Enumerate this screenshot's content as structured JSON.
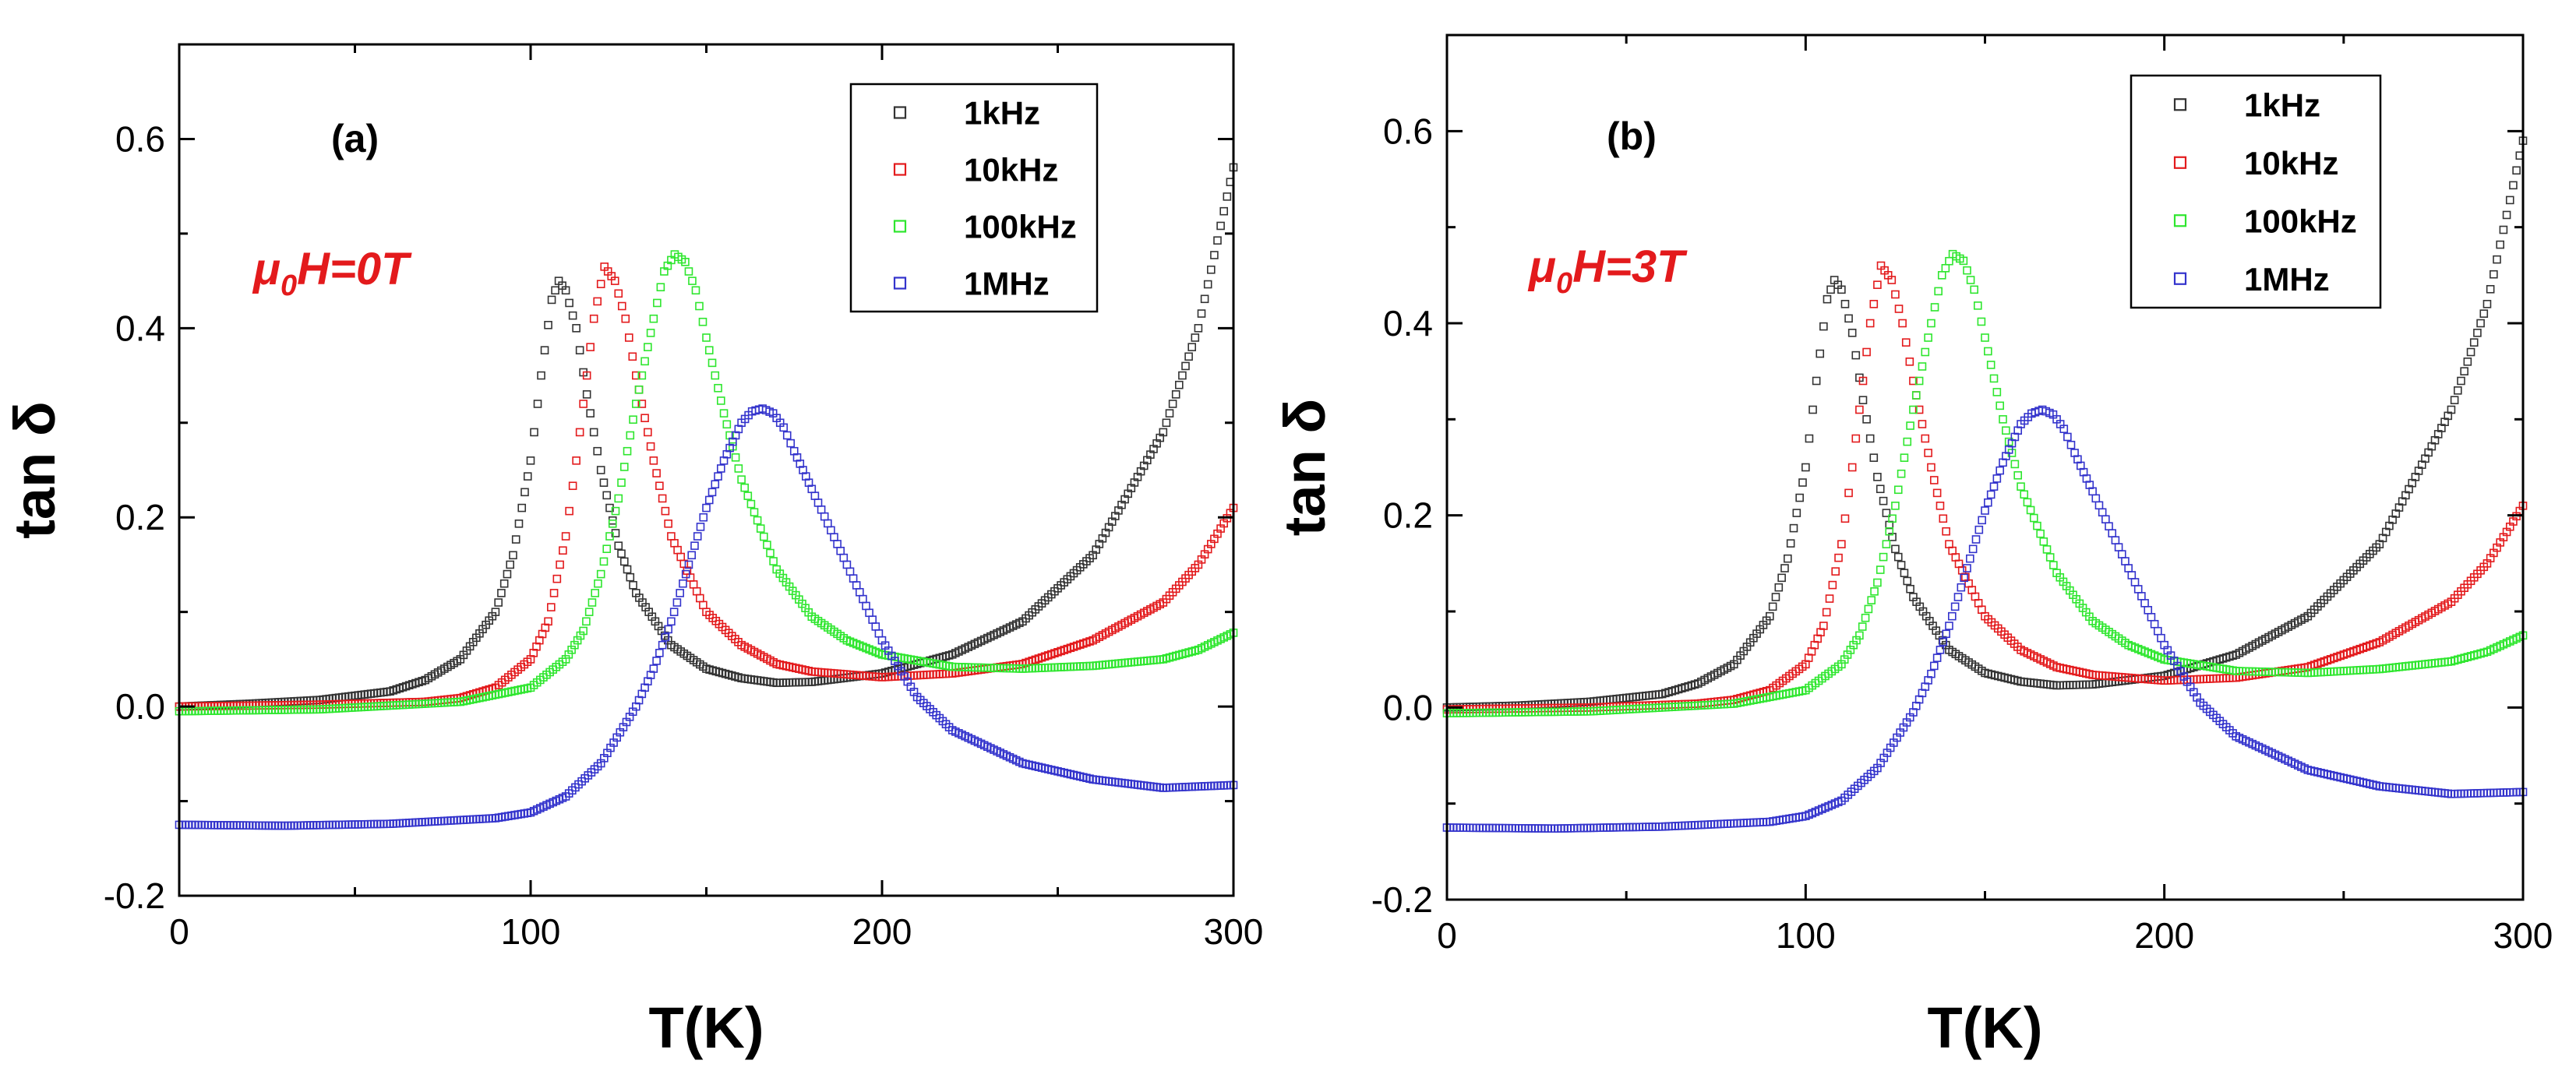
{
  "chart_data": [
    {
      "type": "scatter",
      "panel": "(a)",
      "annotation": {
        "prefix": "μ",
        "sub": "0",
        "rest": "H=0T",
        "color": "#e31a1c"
      },
      "xlabel": "T(K)",
      "ylabel": "tan δ",
      "xlim": [
        0,
        300
      ],
      "ylim": [
        -0.2,
        0.7
      ],
      "xticks": [
        "0",
        "100",
        "200",
        "300"
      ],
      "yticks": [
        "-0.2",
        "0.0",
        "0.2",
        "0.4",
        "0.6"
      ],
      "legend_position": "top-right",
      "marker": "open-square",
      "series": [
        {
          "name": "1kHz",
          "color": "#333333",
          "x": [
            0,
            20,
            40,
            60,
            70,
            80,
            90,
            95,
            100,
            103,
            106,
            108,
            110,
            113,
            116,
            120,
            125,
            130,
            140,
            150,
            160,
            170,
            180,
            200,
            220,
            240,
            260,
            280,
            290,
            300
          ],
          "y": [
            0.0,
            0.003,
            0.007,
            0.016,
            0.028,
            0.05,
            0.1,
            0.16,
            0.26,
            0.35,
            0.43,
            0.45,
            0.44,
            0.4,
            0.33,
            0.25,
            0.17,
            0.12,
            0.065,
            0.04,
            0.03,
            0.025,
            0.026,
            0.035,
            0.055,
            0.09,
            0.16,
            0.29,
            0.4,
            0.57
          ]
        },
        {
          "name": "10kHz",
          "color": "#e31a1c",
          "x": [
            0,
            40,
            70,
            80,
            90,
            100,
            105,
            110,
            113,
            116,
            118,
            121,
            124,
            127,
            130,
            135,
            140,
            150,
            160,
            170,
            180,
            200,
            220,
            240,
            260,
            280,
            290,
            300
          ],
          "y": [
            0.0,
            0.002,
            0.005,
            0.009,
            0.02,
            0.05,
            0.09,
            0.18,
            0.26,
            0.35,
            0.41,
            0.465,
            0.45,
            0.41,
            0.35,
            0.26,
            0.18,
            0.1,
            0.065,
            0.045,
            0.037,
            0.031,
            0.035,
            0.045,
            0.07,
            0.11,
            0.15,
            0.21
          ]
        },
        {
          "name": "100kHz",
          "color": "#2ee62e",
          "x": [
            0,
            40,
            80,
            100,
            110,
            115,
            120,
            125,
            130,
            135,
            138,
            141,
            144,
            147,
            150,
            155,
            160,
            170,
            180,
            190,
            200,
            220,
            240,
            260,
            280,
            290,
            300
          ],
          "y": [
            -0.005,
            -0.003,
            0.005,
            0.02,
            0.05,
            0.08,
            0.14,
            0.22,
            0.32,
            0.41,
            0.46,
            0.478,
            0.47,
            0.44,
            0.39,
            0.31,
            0.24,
            0.145,
            0.095,
            0.07,
            0.055,
            0.042,
            0.04,
            0.043,
            0.05,
            0.06,
            0.078
          ]
        },
        {
          "name": "1MHz",
          "color": "#3333cc",
          "x": [
            0,
            30,
            60,
            90,
            100,
            110,
            120,
            130,
            135,
            140,
            145,
            150,
            155,
            160,
            163,
            166,
            169,
            172,
            175,
            180,
            190,
            200,
            210,
            220,
            240,
            260,
            280,
            300
          ],
          "y": [
            -0.125,
            -0.126,
            -0.124,
            -0.118,
            -0.112,
            -0.095,
            -0.06,
            0.0,
            0.04,
            0.09,
            0.15,
            0.21,
            0.26,
            0.3,
            0.312,
            0.315,
            0.31,
            0.295,
            0.27,
            0.23,
            0.15,
            0.07,
            0.01,
            -0.025,
            -0.06,
            -0.077,
            -0.086,
            -0.083
          ]
        }
      ]
    },
    {
      "type": "scatter",
      "panel": "(b)",
      "annotation": {
        "prefix": "μ",
        "sub": "0",
        "rest": "H=3T",
        "color": "#e31a1c"
      },
      "xlabel": "T(K)",
      "ylabel": "tan δ",
      "xlim": [
        0,
        300
      ],
      "ylim": [
        -0.2,
        0.7
      ],
      "xticks": [
        "0",
        "100",
        "200",
        "300"
      ],
      "yticks": [
        "-0.2",
        "0.0",
        "0.2",
        "0.4",
        "0.6"
      ],
      "legend_position": "top-right",
      "marker": "open-square",
      "series": [
        {
          "name": "1kHz",
          "color": "#333333",
          "x": [
            0,
            20,
            40,
            60,
            70,
            80,
            90,
            95,
            100,
            103,
            106,
            108,
            110,
            113,
            116,
            120,
            125,
            130,
            140,
            150,
            160,
            170,
            180,
            200,
            220,
            240,
            260,
            280,
            290,
            300
          ],
          "y": [
            0.0,
            0.002,
            0.006,
            0.014,
            0.025,
            0.045,
            0.095,
            0.155,
            0.25,
            0.34,
            0.425,
            0.445,
            0.435,
            0.39,
            0.32,
            0.24,
            0.165,
            0.115,
            0.06,
            0.036,
            0.027,
            0.023,
            0.024,
            0.033,
            0.055,
            0.095,
            0.17,
            0.31,
            0.42,
            0.59
          ]
        },
        {
          "name": "10kHz",
          "color": "#e31a1c",
          "x": [
            0,
            40,
            70,
            80,
            90,
            100,
            105,
            110,
            113,
            116,
            118,
            121,
            124,
            127,
            130,
            135,
            140,
            150,
            160,
            170,
            180,
            200,
            220,
            240,
            260,
            280,
            290,
            300
          ],
          "y": [
            -0.002,
            0.0,
            0.004,
            0.008,
            0.018,
            0.045,
            0.085,
            0.17,
            0.25,
            0.34,
            0.4,
            0.46,
            0.445,
            0.4,
            0.34,
            0.25,
            0.17,
            0.095,
            0.06,
            0.042,
            0.034,
            0.028,
            0.031,
            0.042,
            0.068,
            0.11,
            0.15,
            0.21
          ]
        },
        {
          "name": "100kHz",
          "color": "#2ee62e",
          "x": [
            0,
            40,
            80,
            100,
            110,
            115,
            120,
            125,
            130,
            135,
            138,
            141,
            144,
            147,
            150,
            155,
            160,
            170,
            180,
            190,
            200,
            220,
            240,
            260,
            280,
            290,
            300
          ],
          "y": [
            -0.006,
            -0.004,
            0.004,
            0.018,
            0.045,
            0.075,
            0.13,
            0.21,
            0.31,
            0.4,
            0.45,
            0.472,
            0.465,
            0.435,
            0.385,
            0.3,
            0.23,
            0.14,
            0.09,
            0.065,
            0.05,
            0.038,
            0.036,
            0.04,
            0.048,
            0.058,
            0.075
          ]
        },
        {
          "name": "1MHz",
          "color": "#3333cc",
          "x": [
            0,
            30,
            60,
            90,
            100,
            110,
            120,
            130,
            135,
            140,
            145,
            150,
            155,
            160,
            163,
            166,
            169,
            172,
            175,
            180,
            190,
            200,
            210,
            220,
            240,
            260,
            280,
            300
          ],
          "y": [
            -0.125,
            -0.126,
            -0.124,
            -0.119,
            -0.113,
            -0.097,
            -0.063,
            -0.005,
            0.035,
            0.085,
            0.145,
            0.205,
            0.255,
            0.295,
            0.306,
            0.31,
            0.305,
            0.29,
            0.265,
            0.225,
            0.145,
            0.065,
            0.005,
            -0.03,
            -0.065,
            -0.082,
            -0.09,
            -0.088
          ]
        }
      ]
    }
  ]
}
